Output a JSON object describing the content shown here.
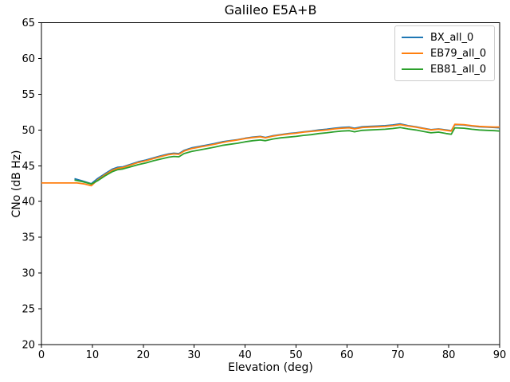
{
  "figure": {
    "title": "Galileo E5A+B",
    "xlabel": "Elevation (deg)",
    "ylabel": "CNo (dB Hz)"
  },
  "chart_data": {
    "type": "line",
    "title": "Galileo E5A+B",
    "xlabel": "Elevation (deg)",
    "ylabel": "CNo (dB Hz)",
    "xlim": [
      0,
      90
    ],
    "ylim": [
      20,
      65
    ],
    "x_ticks": [
      0,
      10,
      20,
      30,
      40,
      50,
      60,
      70,
      80,
      90
    ],
    "y_ticks": [
      20,
      25,
      30,
      35,
      40,
      45,
      50,
      55,
      60,
      65
    ],
    "grid": false,
    "legend_position": "upper right",
    "background": "#ffffff",
    "spine_color": "#000000",
    "series": [
      {
        "name": "BX_all_0",
        "color": "#1f77b4",
        "points": [
          [
            6.5,
            43.2
          ],
          [
            8,
            42.9
          ],
          [
            9.8,
            42.5
          ],
          [
            11,
            43.2
          ],
          [
            12.5,
            43.9
          ],
          [
            14,
            44.55
          ],
          [
            15,
            44.8
          ],
          [
            16,
            44.85
          ],
          [
            17.5,
            45.2
          ],
          [
            19,
            45.55
          ],
          [
            20.5,
            45.8
          ],
          [
            22,
            46.1
          ],
          [
            23.5,
            46.4
          ],
          [
            25,
            46.65
          ],
          [
            26,
            46.75
          ],
          [
            27,
            46.7
          ],
          [
            28,
            47.15
          ],
          [
            29.5,
            47.5
          ],
          [
            31,
            47.7
          ],
          [
            32.5,
            47.9
          ],
          [
            34,
            48.1
          ],
          [
            35.5,
            48.35
          ],
          [
            37,
            48.5
          ],
          [
            38.5,
            48.65
          ],
          [
            40,
            48.85
          ],
          [
            41.5,
            49.0
          ],
          [
            43,
            49.1
          ],
          [
            44,
            48.95
          ],
          [
            45.5,
            49.2
          ],
          [
            47,
            49.35
          ],
          [
            48.5,
            49.5
          ],
          [
            50,
            49.6
          ],
          [
            51.5,
            49.75
          ],
          [
            53,
            49.85
          ],
          [
            54.5,
            50.0
          ],
          [
            56,
            50.1
          ],
          [
            57.5,
            50.25
          ],
          [
            59,
            50.35
          ],
          [
            60.5,
            50.4
          ],
          [
            61.5,
            50.25
          ],
          [
            63,
            50.45
          ],
          [
            64.5,
            50.5
          ],
          [
            66,
            50.55
          ],
          [
            67.5,
            50.6
          ],
          [
            69,
            50.7
          ],
          [
            70.5,
            50.85
          ],
          [
            72,
            50.6
          ],
          [
            73.5,
            50.45
          ],
          [
            75,
            50.25
          ],
          [
            76.5,
            50.05
          ],
          [
            78,
            50.15
          ],
          [
            79.5,
            50.0
          ],
          [
            80.5,
            49.9
          ],
          [
            81.2,
            50.75
          ],
          [
            83,
            50.7
          ],
          [
            84.5,
            50.55
          ],
          [
            86,
            50.45
          ],
          [
            87.5,
            50.4
          ],
          [
            89,
            50.35
          ],
          [
            90,
            50.3
          ]
        ]
      },
      {
        "name": "EB79_all_0",
        "color": "#ff7f0e",
        "points": [
          [
            0,
            42.6
          ],
          [
            7,
            42.6
          ],
          [
            8.5,
            42.45
          ],
          [
            9.8,
            42.2
          ],
          [
            11,
            43.0
          ],
          [
            12.5,
            43.75
          ],
          [
            14,
            44.4
          ],
          [
            15,
            44.65
          ],
          [
            16,
            44.75
          ],
          [
            17.5,
            45.1
          ],
          [
            19,
            45.45
          ],
          [
            20.5,
            45.7
          ],
          [
            22,
            46.0
          ],
          [
            23.5,
            46.3
          ],
          [
            25,
            46.55
          ],
          [
            26,
            46.65
          ],
          [
            27,
            46.6
          ],
          [
            28,
            47.05
          ],
          [
            29.5,
            47.4
          ],
          [
            31,
            47.6
          ],
          [
            32.5,
            47.8
          ],
          [
            34,
            48.0
          ],
          [
            35.5,
            48.25
          ],
          [
            37,
            48.45
          ],
          [
            38.5,
            48.6
          ],
          [
            40,
            48.8
          ],
          [
            41.5,
            48.95
          ],
          [
            43,
            49.05
          ],
          [
            44,
            48.9
          ],
          [
            45.5,
            49.15
          ],
          [
            47,
            49.3
          ],
          [
            48.5,
            49.45
          ],
          [
            50,
            49.55
          ],
          [
            51.5,
            49.7
          ],
          [
            53,
            49.8
          ],
          [
            54.5,
            49.9
          ],
          [
            56,
            50.0
          ],
          [
            57.5,
            50.15
          ],
          [
            59,
            50.25
          ],
          [
            60.5,
            50.3
          ],
          [
            61.5,
            50.15
          ],
          [
            63,
            50.35
          ],
          [
            64.5,
            50.4
          ],
          [
            66,
            50.45
          ],
          [
            67.5,
            50.5
          ],
          [
            69,
            50.6
          ],
          [
            70.5,
            50.75
          ],
          [
            72,
            50.55
          ],
          [
            73.5,
            50.4
          ],
          [
            75,
            50.2
          ],
          [
            76.5,
            50.0
          ],
          [
            78,
            50.1
          ],
          [
            79.5,
            49.95
          ],
          [
            80.5,
            49.85
          ],
          [
            81.2,
            50.8
          ],
          [
            83,
            50.75
          ],
          [
            84.5,
            50.6
          ],
          [
            86,
            50.5
          ],
          [
            87.5,
            50.45
          ],
          [
            89,
            50.4
          ],
          [
            90,
            50.4
          ]
        ]
      },
      {
        "name": "EB81_all_0",
        "color": "#2ca02c",
        "points": [
          [
            6.5,
            43.0
          ],
          [
            8,
            42.8
          ],
          [
            9.8,
            42.45
          ],
          [
            11,
            42.9
          ],
          [
            12.5,
            43.6
          ],
          [
            14,
            44.2
          ],
          [
            15,
            44.45
          ],
          [
            16,
            44.55
          ],
          [
            17.5,
            44.85
          ],
          [
            19,
            45.15
          ],
          [
            20.5,
            45.4
          ],
          [
            22,
            45.7
          ],
          [
            23.5,
            45.95
          ],
          [
            25,
            46.2
          ],
          [
            26,
            46.3
          ],
          [
            27,
            46.25
          ],
          [
            28,
            46.7
          ],
          [
            29.5,
            47.0
          ],
          [
            31,
            47.2
          ],
          [
            32.5,
            47.4
          ],
          [
            34,
            47.6
          ],
          [
            35.5,
            47.85
          ],
          [
            37,
            48.0
          ],
          [
            38.5,
            48.15
          ],
          [
            40,
            48.35
          ],
          [
            41.5,
            48.5
          ],
          [
            43,
            48.6
          ],
          [
            44,
            48.5
          ],
          [
            45.5,
            48.75
          ],
          [
            47,
            48.9
          ],
          [
            48.5,
            49.0
          ],
          [
            50,
            49.1
          ],
          [
            51.5,
            49.25
          ],
          [
            53,
            49.35
          ],
          [
            54.5,
            49.5
          ],
          [
            56,
            49.6
          ],
          [
            57.5,
            49.75
          ],
          [
            59,
            49.85
          ],
          [
            60.5,
            49.9
          ],
          [
            61.5,
            49.75
          ],
          [
            63,
            49.95
          ],
          [
            64.5,
            50.0
          ],
          [
            66,
            50.05
          ],
          [
            67.5,
            50.1
          ],
          [
            69,
            50.2
          ],
          [
            70.5,
            50.35
          ],
          [
            72,
            50.15
          ],
          [
            73.5,
            50.0
          ],
          [
            75,
            49.8
          ],
          [
            76.5,
            49.6
          ],
          [
            78,
            49.7
          ],
          [
            79.5,
            49.5
          ],
          [
            80.5,
            49.4
          ],
          [
            81.2,
            50.3
          ],
          [
            83,
            50.25
          ],
          [
            84.5,
            50.1
          ],
          [
            86,
            50.0
          ],
          [
            87.5,
            49.95
          ],
          [
            89,
            49.9
          ],
          [
            90,
            49.85
          ]
        ]
      }
    ]
  }
}
